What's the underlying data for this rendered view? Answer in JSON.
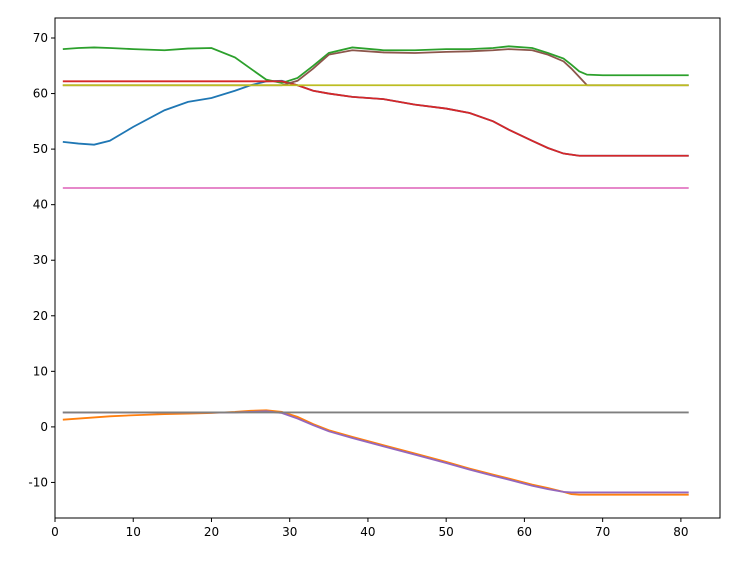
{
  "chart_data": {
    "type": "line",
    "x": [
      1,
      3,
      5,
      7,
      10,
      14,
      17,
      20,
      23,
      25,
      27,
      29,
      31,
      33,
      35,
      38,
      42,
      46,
      50,
      53,
      56,
      58,
      61,
      63,
      65,
      66,
      67,
      68,
      70,
      75,
      81
    ],
    "xlim": [
      0,
      85
    ],
    "ylim": [
      -16.4,
      73.6
    ],
    "xticks": [
      0,
      10,
      20,
      30,
      40,
      50,
      60,
      70,
      80
    ],
    "yticks": [
      -10,
      0,
      10,
      20,
      30,
      40,
      50,
      60,
      70
    ],
    "grid": false,
    "series": [
      {
        "color": "#1f77b4",
        "values": [
          51.3,
          51,
          50.8,
          51.5,
          54,
          57,
          58.5,
          59.2,
          60.5,
          61.5,
          62.2,
          62.3,
          61.5,
          60.5,
          60,
          59.4,
          59,
          58,
          57.3,
          56.5,
          55,
          53.5,
          51.5,
          50.2,
          49.2,
          49,
          48.8,
          48.8,
          48.8,
          48.8,
          48.8
        ]
      },
      {
        "color": "#ff7f0e",
        "values": [
          1.3,
          1.5,
          1.7,
          1.9,
          2.1,
          2.3,
          2.4,
          2.5,
          2.7,
          2.9,
          3.0,
          2.7,
          1.8,
          0.5,
          -0.6,
          -1.8,
          -3.3,
          -4.8,
          -6.3,
          -7.5,
          -8.6,
          -9.3,
          -10.4,
          -11,
          -11.7,
          -12.1,
          -12.2,
          -12.2,
          -12.2,
          -12.2,
          -12.2
        ]
      },
      {
        "color": "#2ca02c",
        "values": [
          68,
          68.2,
          68.3,
          68.2,
          68,
          67.8,
          68.1,
          68.2,
          66.5,
          64.5,
          62.5,
          61.9,
          62.8,
          65,
          67.3,
          68.3,
          67.8,
          67.8,
          68,
          68,
          68.2,
          68.5,
          68.2,
          67.3,
          66.3,
          65.2,
          64,
          63.4,
          63.3,
          63.3,
          63.3
        ]
      },
      {
        "color": "#d62728",
        "values": [
          62.2,
          62.2,
          62.2,
          62.2,
          62.2,
          62.2,
          62.2,
          62.2,
          62.2,
          62.2,
          62.2,
          62.2,
          61.5,
          60.5,
          60,
          59.4,
          59,
          58,
          57.3,
          56.5,
          55,
          53.5,
          51.5,
          50.2,
          49.2,
          49,
          48.8,
          48.8,
          48.8,
          48.8,
          48.8
        ]
      },
      {
        "color": "#9467bd",
        "values": [
          2.6,
          2.6,
          2.6,
          2.6,
          2.6,
          2.6,
          2.6,
          2.6,
          2.6,
          2.7,
          2.8,
          2.5,
          1.5,
          0.3,
          -0.8,
          -2,
          -3.5,
          -5,
          -6.5,
          -7.7,
          -8.8,
          -9.5,
          -10.6,
          -11.2,
          -11.7,
          -11.8,
          -11.8,
          -11.8,
          -11.8,
          -11.8,
          -11.8
        ]
      },
      {
        "color": "#8c564b",
        "values": [
          61.5,
          61.5,
          61.5,
          61.5,
          61.5,
          61.5,
          61.5,
          61.5,
          61.5,
          61.5,
          61.5,
          61.5,
          62.3,
          64.5,
          67,
          67.8,
          67.4,
          67.3,
          67.5,
          67.6,
          67.8,
          68,
          67.8,
          67,
          65.8,
          64.5,
          63,
          61.5,
          61.5,
          61.5,
          61.5
        ]
      },
      {
        "color": "#e377c2",
        "values": [
          43,
          43,
          43,
          43,
          43,
          43,
          43,
          43,
          43,
          43,
          43,
          43,
          43,
          43,
          43,
          43,
          43,
          43,
          43,
          43,
          43,
          43,
          43,
          43,
          43,
          43,
          43,
          43,
          43,
          43,
          43
        ]
      },
      {
        "color": "#7f7f7f",
        "values": [
          2.6,
          2.6,
          2.6,
          2.6,
          2.6,
          2.6,
          2.6,
          2.6,
          2.6,
          2.6,
          2.6,
          2.6,
          2.6,
          2.6,
          2.6,
          2.6,
          2.6,
          2.6,
          2.6,
          2.6,
          2.6,
          2.6,
          2.6,
          2.6,
          2.6,
          2.6,
          2.6,
          2.6,
          2.6,
          2.6,
          2.6
        ]
      },
      {
        "color": "#bcbd22",
        "values": [
          61.5,
          61.5,
          61.5,
          61.5,
          61.5,
          61.5,
          61.5,
          61.5,
          61.5,
          61.5,
          61.5,
          61.5,
          61.5,
          61.5,
          61.5,
          61.5,
          61.5,
          61.5,
          61.5,
          61.5,
          61.5,
          61.5,
          61.5,
          61.5,
          61.5,
          61.5,
          61.5,
          61.5,
          61.5,
          61.5,
          61.5
        ]
      }
    ]
  }
}
